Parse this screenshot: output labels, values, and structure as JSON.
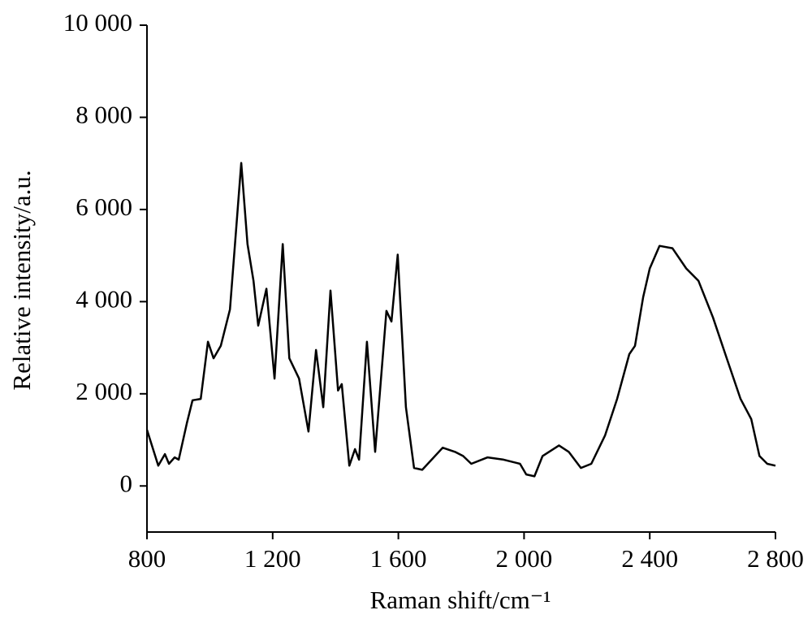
{
  "chart_data": {
    "type": "line",
    "xlabel": "Raman shift/cm⁻¹",
    "ylabel": "Relative intensity/a.u.",
    "xlim": [
      800,
      2800
    ],
    "ylim": [
      -1000,
      10000
    ],
    "xticks": [
      800,
      {
        "value": 1200,
        "label": "1 200"
      },
      {
        "value": 1600,
        "label": "1 600"
      },
      {
        "value": 2000,
        "label": "2 000"
      },
      {
        "value": 2400,
        "label": "2 400"
      },
      {
        "value": 2800,
        "label": "2 800"
      }
    ],
    "yticks": [
      0,
      {
        "value": 2000,
        "label": "2 000"
      },
      {
        "value": 4000,
        "label": "4 000"
      },
      {
        "value": 6000,
        "label": "6 000"
      },
      {
        "value": 8000,
        "label": "8 000"
      },
      {
        "value": 10000,
        "label": "10 000"
      }
    ],
    "grid": false,
    "series": [
      {
        "color": "#000000",
        "x": [
          800,
          836,
          857,
          870,
          888,
          901,
          927,
          945,
          971,
          994,
          1012,
          1035,
          1064,
          1100,
          1120,
          1139,
          1154,
          1180,
          1206,
          1232,
          1253,
          1284,
          1314,
          1338,
          1361,
          1384,
          1408,
          1420,
          1444,
          1462,
          1475,
          1500,
          1526,
          1562,
          1578,
          1598,
          1624,
          1650,
          1676,
          1741,
          1780,
          1806,
          1832,
          1884,
          1935,
          1987,
          2007,
          2033,
          2059,
          2111,
          2142,
          2181,
          2214,
          2258,
          2296,
          2335,
          2353,
          2379,
          2400,
          2431,
          2472,
          2516,
          2555,
          2601,
          2645,
          2689,
          2723,
          2749,
          2774,
          2800
        ],
        "values": [
          1220,
          440,
          690,
          480,
          620,
          570,
          1360,
          1860,
          1890,
          3130,
          2770,
          3040,
          3830,
          7010,
          5250,
          4450,
          3480,
          4280,
          2330,
          5250,
          2770,
          2330,
          1180,
          2950,
          1710,
          4240,
          2070,
          2210,
          440,
          800,
          570,
          3130,
          740,
          3800,
          3570,
          5020,
          1710,
          390,
          350,
          830,
          740,
          650,
          480,
          620,
          570,
          480,
          250,
          210,
          650,
          880,
          740,
          390,
          480,
          1100,
          1890,
          2860,
          3040,
          4100,
          4720,
          5210,
          5160,
          4720,
          4450,
          3660,
          2770,
          1890,
          1450,
          650,
          480,
          440
        ]
      }
    ]
  }
}
